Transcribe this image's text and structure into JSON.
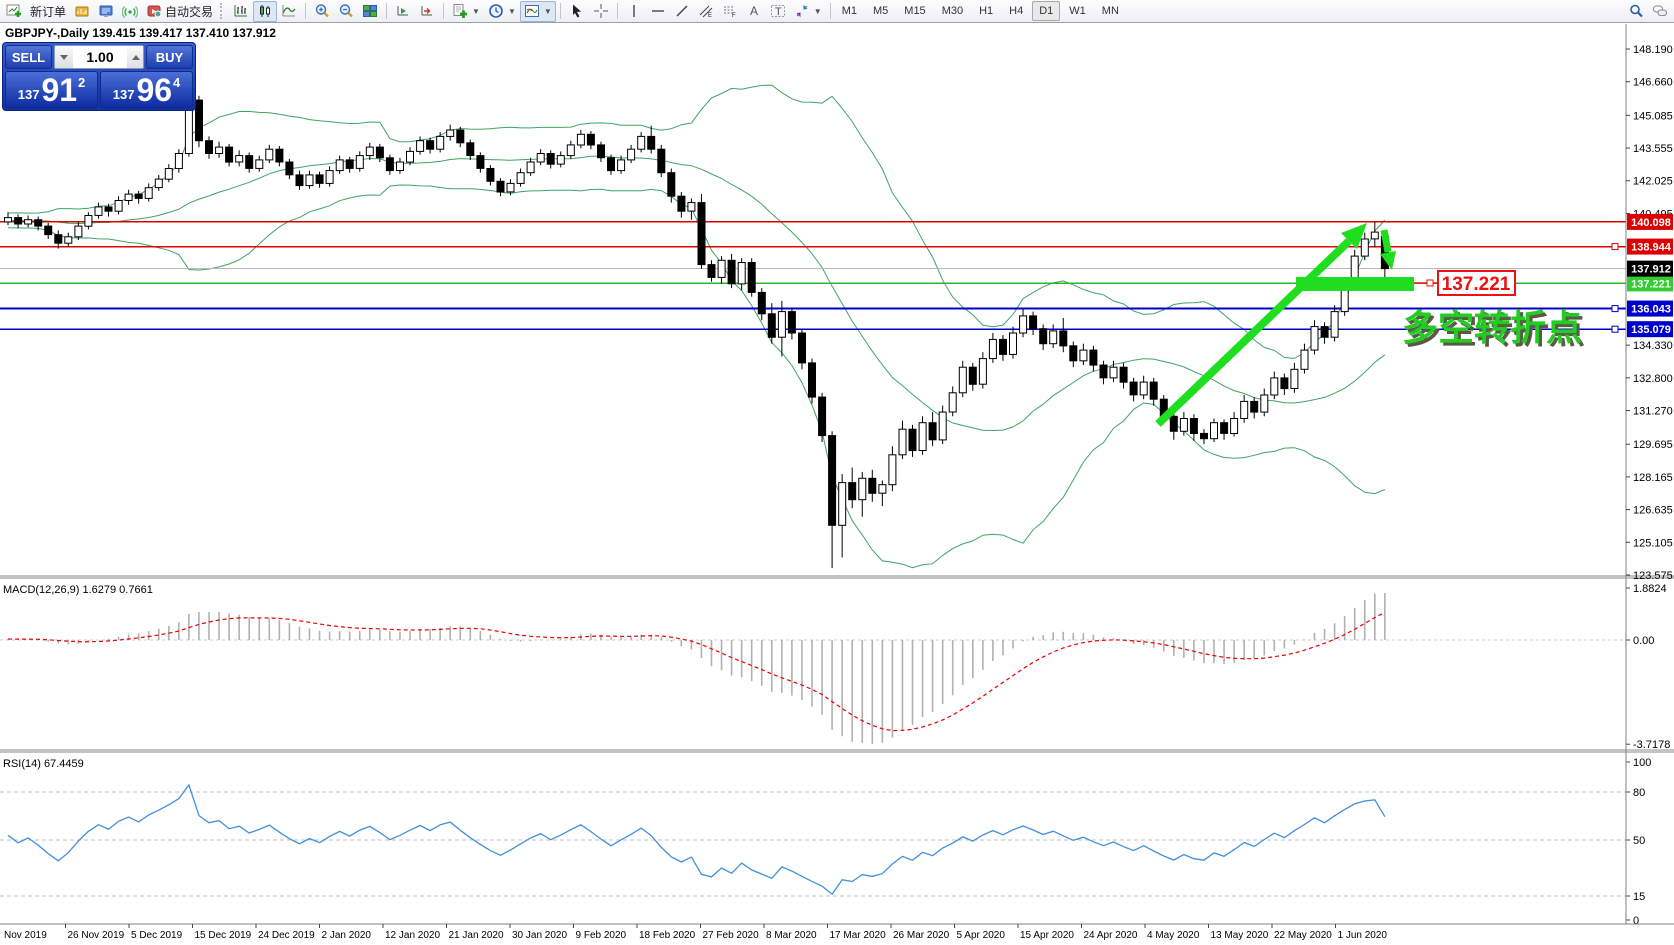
{
  "toolbar": {
    "new_order_label": "新订单",
    "autotrading_label": "自动交易",
    "timeframes": [
      "M1",
      "M5",
      "M15",
      "M30",
      "H1",
      "H4",
      "D1",
      "W1",
      "MN"
    ],
    "active_timeframe": "D1",
    "icon_names": [
      "new-chart-icon",
      "profiles-icon",
      "market-watch-icon",
      "signal-icon",
      "autotrading-icon",
      "bar-chart-icon",
      "candle-chart-icon",
      "line-chart-icon",
      "zoom-in-icon",
      "zoom-out-icon",
      "tile-windows-icon",
      "chart-forward-icon",
      "chart-end-icon",
      "new-template-icon",
      "periods-clock-icon",
      "template-frame-icon",
      "cursor-icon",
      "crosshair-icon",
      "vertical-line-icon",
      "horizontal-line-icon",
      "trendline-icon",
      "channel-icon",
      "fibonacci-icon",
      "text-icon",
      "text-label-icon",
      "arrows-icon",
      "search-icon",
      "chat-icon"
    ]
  },
  "trade_panel": {
    "sell_label": "SELL",
    "buy_label": "BUY",
    "volume": "1.00",
    "sell_price": {
      "prefix": "137",
      "big": "91",
      "sup": "2"
    },
    "buy_price": {
      "prefix": "137",
      "big": "96",
      "sup": "4"
    }
  },
  "chart": {
    "title": "GBPJPY-,Daily  139.415 139.417 137.410 137.912"
  },
  "chart_data": {
    "type": "candlestick",
    "symbol": "GBPJPY",
    "period": "Daily",
    "last_bar": {
      "open": 139.415,
      "high": 139.417,
      "low": 137.41,
      "close": 137.912
    },
    "price_axis_ticks": [
      "148.190",
      "146.660",
      "145.085",
      "143.555",
      "142.025",
      "140.495",
      "134.330",
      "132.800",
      "131.270",
      "129.695",
      "128.165",
      "126.635",
      "125.105",
      "123.575"
    ],
    "date_labels": [
      "Nov 2019",
      "26 Nov 2019",
      "5 Dec 2019",
      "15 Dec 2019",
      "24 Dec 2019",
      "2 Jan 2020",
      "12 Jan 2020",
      "21 Jan 2020",
      "30 Jan 2020",
      "9 Feb 2020",
      "18 Feb 2020",
      "27 Feb 2020",
      "8 Mar 2020",
      "17 Mar 2020",
      "26 Mar 2020",
      "5 Apr 2020",
      "15 Apr 2020",
      "24 Apr 2020",
      "4 May 2020",
      "13 May 2020",
      "22 May 2020",
      "1 Jun 2020"
    ],
    "prehistory_closes": [
      139.9,
      140.2,
      140.0,
      139.7,
      140.1,
      140.4,
      140.1,
      139.8,
      140.0,
      140.3,
      140.1,
      139.9,
      140.2,
      140.5,
      140.2,
      139.9,
      140.1,
      140.3,
      140.0,
      139.8,
      140.1,
      140.4,
      140.2,
      140.0,
      140.3,
      140.5,
      140.2,
      140.0,
      140.2,
      140.4,
      140.1,
      139.9,
      140.2,
      140.3,
      140.1
    ],
    "bars": [
      [
        140.1,
        140.55,
        139.95,
        140.3
      ],
      [
        140.3,
        140.45,
        139.8,
        140.0
      ],
      [
        140.0,
        140.4,
        139.85,
        140.2
      ],
      [
        140.2,
        140.35,
        139.7,
        139.9
      ],
      [
        139.9,
        140.05,
        139.3,
        139.5
      ],
      [
        139.5,
        139.7,
        138.85,
        139.1
      ],
      [
        139.1,
        139.6,
        138.95,
        139.4
      ],
      [
        139.4,
        140.1,
        139.25,
        139.9
      ],
      [
        139.9,
        140.55,
        139.75,
        140.4
      ],
      [
        140.4,
        141.0,
        140.25,
        140.8
      ],
      [
        140.8,
        140.95,
        140.35,
        140.6
      ],
      [
        140.6,
        141.3,
        140.45,
        141.1
      ],
      [
        141.1,
        141.6,
        140.9,
        141.4
      ],
      [
        141.4,
        141.55,
        140.95,
        141.2
      ],
      [
        141.2,
        141.9,
        141.05,
        141.7
      ],
      [
        141.7,
        142.3,
        141.55,
        142.1
      ],
      [
        142.1,
        142.8,
        141.95,
        142.6
      ],
      [
        142.6,
        143.5,
        142.4,
        143.3
      ],
      [
        143.3,
        146.1,
        143.15,
        145.9
      ],
      [
        145.8,
        146.0,
        143.6,
        143.9
      ],
      [
        143.9,
        144.1,
        143.05,
        143.3
      ],
      [
        143.3,
        143.85,
        143.1,
        143.6
      ],
      [
        143.6,
        143.75,
        142.7,
        142.9
      ],
      [
        142.9,
        143.45,
        142.7,
        143.2
      ],
      [
        143.2,
        143.35,
        142.4,
        142.6
      ],
      [
        142.6,
        143.2,
        142.45,
        143.0
      ],
      [
        143.0,
        143.7,
        142.85,
        143.5
      ],
      [
        143.5,
        143.65,
        142.7,
        142.9
      ],
      [
        142.9,
        143.05,
        142.1,
        142.3
      ],
      [
        142.3,
        142.5,
        141.6,
        141.8
      ],
      [
        141.8,
        142.5,
        141.65,
        142.3
      ],
      [
        142.3,
        142.45,
        141.7,
        141.9
      ],
      [
        141.9,
        142.7,
        141.75,
        142.5
      ],
      [
        142.5,
        143.2,
        142.35,
        143.0
      ],
      [
        143.0,
        143.15,
        142.4,
        142.6
      ],
      [
        142.6,
        143.4,
        142.45,
        143.2
      ],
      [
        143.2,
        143.8,
        143.0,
        143.6
      ],
      [
        143.6,
        143.75,
        142.9,
        143.1
      ],
      [
        143.1,
        143.25,
        142.3,
        142.5
      ],
      [
        142.5,
        143.1,
        142.35,
        142.9
      ],
      [
        142.9,
        143.6,
        142.75,
        143.4
      ],
      [
        143.4,
        144.1,
        143.25,
        143.9
      ],
      [
        143.9,
        144.05,
        143.3,
        143.5
      ],
      [
        143.5,
        144.3,
        143.35,
        144.1
      ],
      [
        144.1,
        144.65,
        143.9,
        144.4
      ],
      [
        144.4,
        144.55,
        143.6,
        143.8
      ],
      [
        143.8,
        143.95,
        143.0,
        143.2
      ],
      [
        143.2,
        143.35,
        142.4,
        142.6
      ],
      [
        142.6,
        142.75,
        141.8,
        142.0
      ],
      [
        142.0,
        142.15,
        141.3,
        141.5
      ],
      [
        141.5,
        142.1,
        141.35,
        141.9
      ],
      [
        141.9,
        142.6,
        141.75,
        142.4
      ],
      [
        142.4,
        143.1,
        142.25,
        142.9
      ],
      [
        142.9,
        143.5,
        142.75,
        143.3
      ],
      [
        143.3,
        143.45,
        142.6,
        142.8
      ],
      [
        142.8,
        143.4,
        142.65,
        143.2
      ],
      [
        143.2,
        143.9,
        143.05,
        143.7
      ],
      [
        143.7,
        144.4,
        143.55,
        144.2
      ],
      [
        144.2,
        144.35,
        143.5,
        143.7
      ],
      [
        143.7,
        143.85,
        142.9,
        143.1
      ],
      [
        143.1,
        143.25,
        142.3,
        142.5
      ],
      [
        142.5,
        143.2,
        142.35,
        143.0
      ],
      [
        143.0,
        143.7,
        142.85,
        143.5
      ],
      [
        143.5,
        144.3,
        143.35,
        144.1
      ],
      [
        144.1,
        144.6,
        143.3,
        143.5
      ],
      [
        143.5,
        143.7,
        142.2,
        142.4
      ],
      [
        142.4,
        142.6,
        141.0,
        141.3
      ],
      [
        141.3,
        141.5,
        140.3,
        140.6
      ],
      [
        140.6,
        141.2,
        140.2,
        141.0
      ],
      [
        141.0,
        141.4,
        137.9,
        138.1
      ],
      [
        138.1,
        138.3,
        137.3,
        137.5
      ],
      [
        137.5,
        138.5,
        137.2,
        138.3
      ],
      [
        138.3,
        138.6,
        137.0,
        137.2
      ],
      [
        137.2,
        138.4,
        136.9,
        138.2
      ],
      [
        138.2,
        138.4,
        136.6,
        136.8
      ],
      [
        136.8,
        137.0,
        135.5,
        135.8
      ],
      [
        135.8,
        136.3,
        134.4,
        134.7
      ],
      [
        134.7,
        136.4,
        133.8,
        135.9
      ],
      [
        135.9,
        136.1,
        134.6,
        134.9
      ],
      [
        134.9,
        135.1,
        133.2,
        133.5
      ],
      [
        133.5,
        133.7,
        131.6,
        131.9
      ],
      [
        131.9,
        132.1,
        129.8,
        130.1
      ],
      [
        130.1,
        130.3,
        123.9,
        125.9
      ],
      [
        125.9,
        128.3,
        124.4,
        127.9
      ],
      [
        127.9,
        128.6,
        126.7,
        127.1
      ],
      [
        127.1,
        128.4,
        126.3,
        128.1
      ],
      [
        128.1,
        128.5,
        127.0,
        127.4
      ],
      [
        127.4,
        128.0,
        126.8,
        127.8
      ],
      [
        127.8,
        129.6,
        127.5,
        129.2
      ],
      [
        129.2,
        130.8,
        129.0,
        130.4
      ],
      [
        130.4,
        130.6,
        129.1,
        129.4
      ],
      [
        129.4,
        131.0,
        129.2,
        130.7
      ],
      [
        130.7,
        131.2,
        129.6,
        129.9
      ],
      [
        129.9,
        131.5,
        129.7,
        131.2
      ],
      [
        131.2,
        132.4,
        131.0,
        132.1
      ],
      [
        132.1,
        133.6,
        131.9,
        133.3
      ],
      [
        133.3,
        133.5,
        132.2,
        132.5
      ],
      [
        132.5,
        134.0,
        132.3,
        133.7
      ],
      [
        133.7,
        134.9,
        133.5,
        134.6
      ],
      [
        134.6,
        134.8,
        133.6,
        133.9
      ],
      [
        133.9,
        135.2,
        133.7,
        134.9
      ],
      [
        134.9,
        136.0,
        134.7,
        135.7
      ],
      [
        135.7,
        135.9,
        134.8,
        135.1
      ],
      [
        135.1,
        135.3,
        134.1,
        134.4
      ],
      [
        134.4,
        135.3,
        134.2,
        135.0
      ],
      [
        135.0,
        135.6,
        134.0,
        134.3
      ],
      [
        134.3,
        134.5,
        133.3,
        133.6
      ],
      [
        133.6,
        134.4,
        133.4,
        134.1
      ],
      [
        134.1,
        134.3,
        133.1,
        133.4
      ],
      [
        133.4,
        133.6,
        132.5,
        132.8
      ],
      [
        132.8,
        133.6,
        132.6,
        133.3
      ],
      [
        133.3,
        133.5,
        132.3,
        132.6
      ],
      [
        132.6,
        132.8,
        131.7,
        132.0
      ],
      [
        132.0,
        132.9,
        131.8,
        132.6
      ],
      [
        132.6,
        132.8,
        131.5,
        131.8
      ],
      [
        131.8,
        132.0,
        130.7,
        131.0
      ],
      [
        131.0,
        131.4,
        129.9,
        130.3
      ],
      [
        130.3,
        131.2,
        130.1,
        130.9
      ],
      [
        130.9,
        131.1,
        129.85,
        130.2
      ],
      [
        130.2,
        130.4,
        129.7,
        129.95
      ],
      [
        129.95,
        130.9,
        129.8,
        130.7
      ],
      [
        130.7,
        130.85,
        129.9,
        130.2
      ],
      [
        130.2,
        131.2,
        130.05,
        130.9
      ],
      [
        130.9,
        132.0,
        130.7,
        131.7
      ],
      [
        131.7,
        131.9,
        130.9,
        131.2
      ],
      [
        131.2,
        132.3,
        131.0,
        132.0
      ],
      [
        132.0,
        133.1,
        131.8,
        132.8
      ],
      [
        132.8,
        133.0,
        132.0,
        132.3
      ],
      [
        132.3,
        133.5,
        132.1,
        133.2
      ],
      [
        133.2,
        134.4,
        133.0,
        134.1
      ],
      [
        134.1,
        135.5,
        133.9,
        135.2
      ],
      [
        135.2,
        135.4,
        134.4,
        134.7
      ],
      [
        134.7,
        136.2,
        134.5,
        135.9
      ],
      [
        135.9,
        137.5,
        135.7,
        137.2
      ],
      [
        137.2,
        138.8,
        137.0,
        138.5
      ],
      [
        138.5,
        139.6,
        138.3,
        139.3
      ],
      [
        139.3,
        140.1,
        138.9,
        139.62
      ],
      [
        139.415,
        139.417,
        137.41,
        137.912
      ]
    ],
    "hlines": [
      {
        "price": 140.098,
        "label": "140.098",
        "color": "#dd0000",
        "box": "#dd0000",
        "width": 1.6,
        "handle": false
      },
      {
        "price": 138.944,
        "label": "138.944",
        "color": "#dd0000",
        "box": "#dd0000",
        "width": 1.6,
        "handle": true
      },
      {
        "price": 137.221,
        "label": "137.221",
        "color": "#2db52d",
        "box": "#33cc33",
        "width": 1.6,
        "handle": false
      },
      {
        "price": 136.043,
        "label": "136.043",
        "color": "#0000cc",
        "box": "#0000cc",
        "width": 1.8,
        "handle": true
      },
      {
        "price": 135.079,
        "label": "135.079",
        "color": "#0000cc",
        "box": "#0000cc",
        "width": 1.8,
        "handle": true
      }
    ],
    "current_price": {
      "value": 137.912,
      "label": "137.912",
      "line_color": "#b8b8b8",
      "box": "#000000"
    },
    "indicators": {
      "bollinger": {
        "period": 20,
        "deviation": 2,
        "color": "#3fa463"
      },
      "macd": {
        "label": "MACD(12,26,9) 1.6279 0.7661",
        "value": "1.6279",
        "signal_value": "0.7661",
        "ticks": [
          "1.8824",
          "0.00",
          "-3.7178"
        ],
        "hist_color": "#b0b0b0",
        "signal_color": "#e60000"
      },
      "rsi": {
        "label": "RSI(14) 67.4459",
        "value": "67.4459",
        "ticks": [
          "100",
          "80",
          "50",
          "15",
          "0"
        ],
        "levels": [
          80,
          50,
          15
        ],
        "line_color": "#418fde"
      }
    },
    "annotations": {
      "support_price_label": "137.221",
      "turning_point_text": "多空转折点",
      "accent_green": "#1fdd1f",
      "text_green": "#22cc22",
      "callout_red": "#ee1111"
    }
  }
}
